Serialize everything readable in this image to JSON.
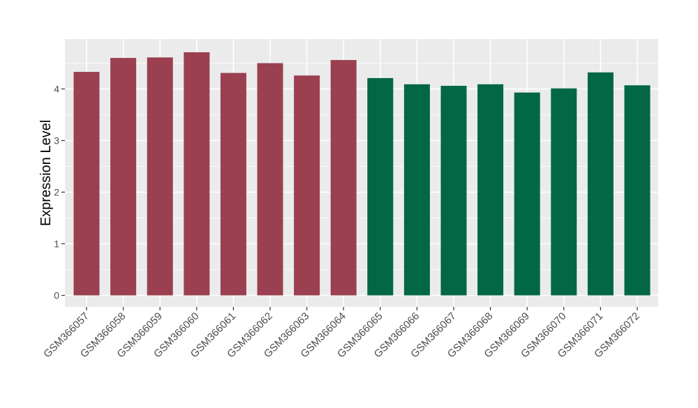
{
  "chart_data": {
    "type": "bar",
    "title": "",
    "xlabel": "",
    "ylabel": "Expression Level",
    "ylim": [
      0,
      4.9
    ],
    "yticks": [
      0,
      1,
      2,
      3,
      4
    ],
    "grid": true,
    "categories": [
      "GSM366057",
      "GSM366058",
      "GSM366059",
      "GSM366060",
      "GSM366061",
      "GSM366062",
      "GSM366063",
      "GSM366064",
      "GSM366065",
      "GSM366066",
      "GSM366067",
      "GSM366068",
      "GSM366069",
      "GSM366070",
      "GSM366071",
      "GSM366072"
    ],
    "values": [
      4.33,
      4.6,
      4.61,
      4.71,
      4.31,
      4.5,
      4.26,
      4.56,
      4.21,
      4.09,
      4.06,
      4.09,
      3.93,
      4.01,
      4.32,
      4.07
    ],
    "groups": [
      {
        "color": "#9a4050",
        "categories": [
          "GSM366057",
          "GSM366058",
          "GSM366059",
          "GSM366060",
          "GSM366061",
          "GSM366062",
          "GSM366063",
          "GSM366064"
        ]
      },
      {
        "color": "#016744",
        "categories": [
          "GSM366065",
          "GSM366066",
          "GSM366067",
          "GSM366068",
          "GSM366069",
          "GSM366070",
          "GSM366071",
          "GSM366072"
        ]
      }
    ],
    "panel_background": "#ebebeb",
    "grid_color": "#ffffff"
  }
}
